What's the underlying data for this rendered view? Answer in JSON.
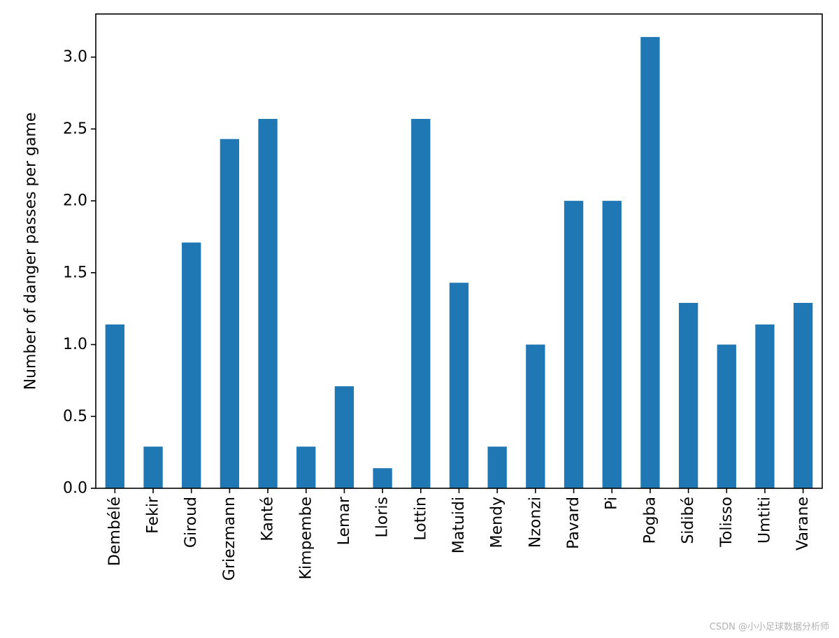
{
  "chart_data": {
    "type": "bar",
    "title": "",
    "xlabel": "",
    "ylabel": "Number of danger passes per game",
    "categories": [
      "Dembélé",
      "Fekir",
      "Giroud",
      "Griezmann",
      "Kanté",
      "Kimpembe",
      "Lemar",
      "Lloris",
      "Lottin",
      "Matuidi",
      "Mendy",
      "Nzonzi",
      "Pavard",
      "Pi",
      "Pogba",
      "Sidibé",
      "Tolisso",
      "Umtiti",
      "Varane"
    ],
    "values": [
      1.14,
      0.29,
      1.71,
      2.43,
      2.57,
      0.29,
      0.71,
      0.14,
      2.57,
      1.43,
      0.29,
      1.0,
      2.0,
      2.0,
      3.14,
      1.29,
      1.0,
      1.14,
      1.29
    ],
    "ylim": [
      0,
      3.3
    ],
    "yticks": [
      0.0,
      0.5,
      1.0,
      1.5,
      2.0,
      2.5,
      3.0
    ],
    "ytick_labels": [
      "0.0",
      "0.5",
      "1.0",
      "1.5",
      "2.0",
      "2.5",
      "3.0"
    ],
    "grid": false,
    "bar_color": "#1f77b4"
  },
  "watermark": "CSDN @小小足球数据分析师"
}
